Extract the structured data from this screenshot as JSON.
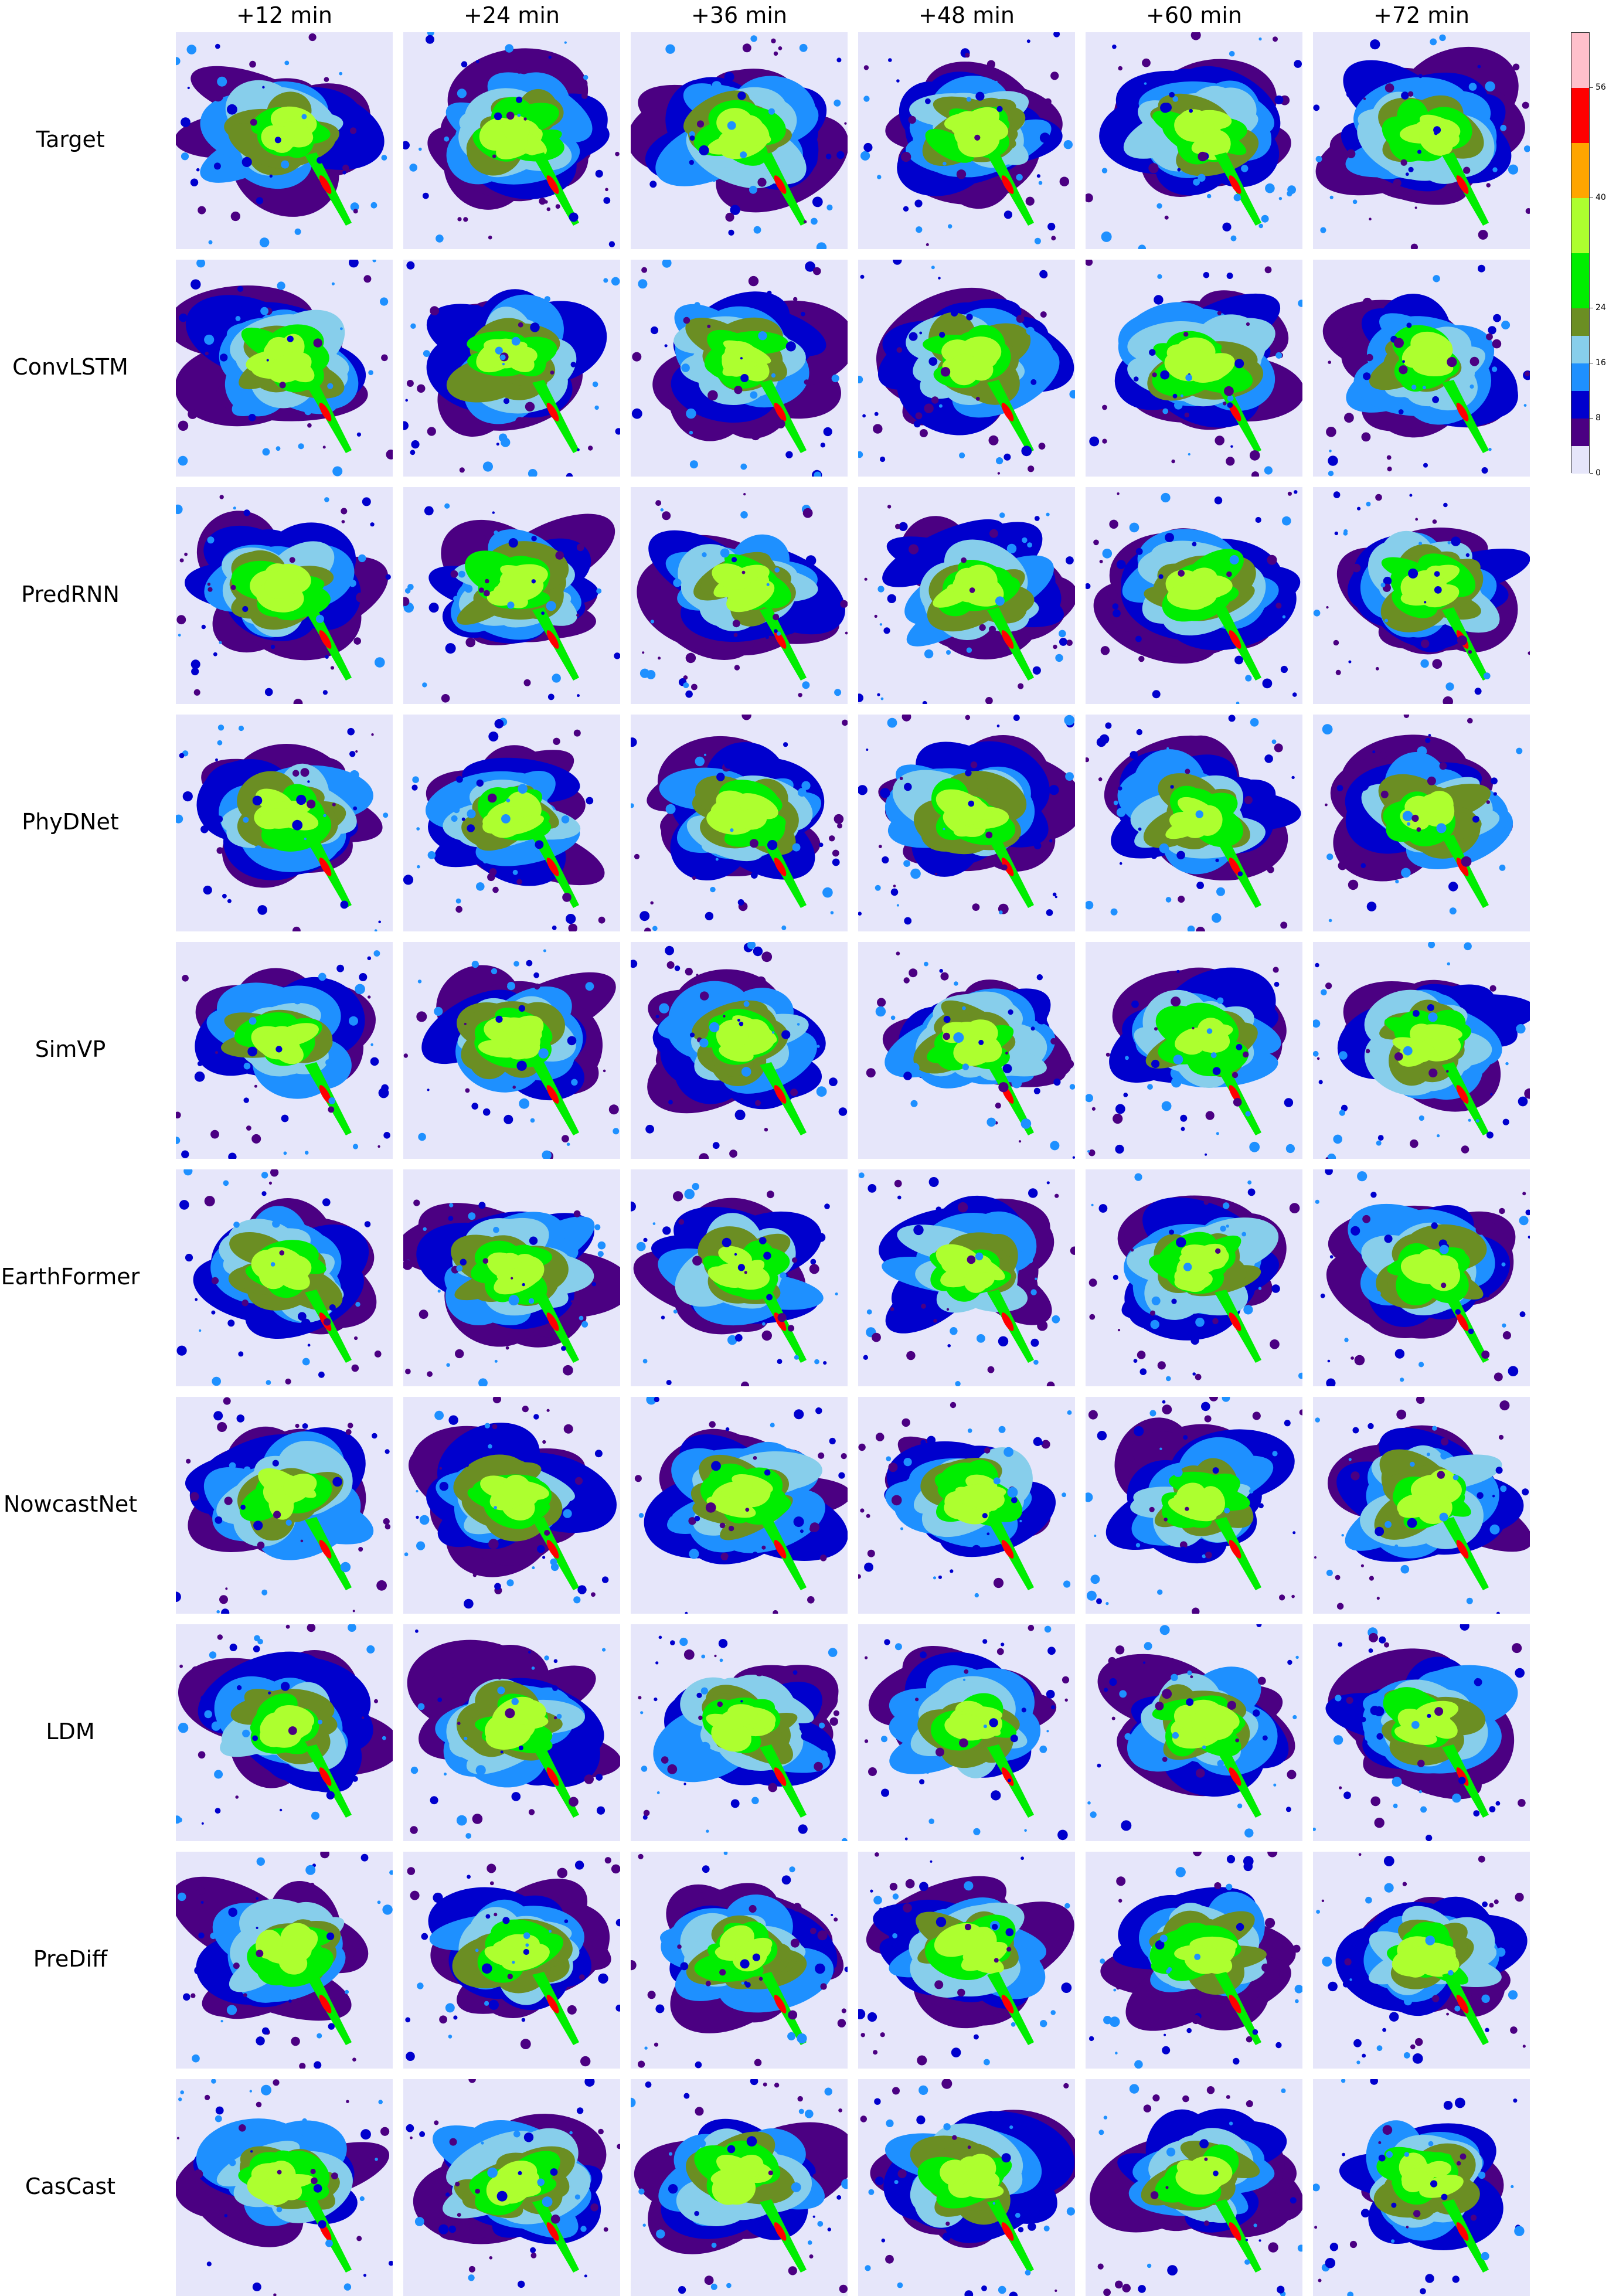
{
  "columns": [
    "+12 min",
    "+24 min",
    "+36 min",
    "+48 min",
    "+60 min",
    "+72 min"
  ],
  "rows": [
    "Target",
    "ConvLSTM",
    "PredRNN",
    "PhyDNet",
    "SimVP",
    "EarthFormer",
    "NowcastNet",
    "LDM",
    "PreDiff",
    "CasCast"
  ],
  "colorbar": {
    "ticks": [
      "0",
      "8",
      "16",
      "24",
      "40",
      "56"
    ],
    "levels": [
      0,
      4,
      8,
      12,
      16,
      20,
      24,
      32,
      40,
      48,
      56,
      64
    ],
    "colors": [
      "#e6e6fa",
      "#4b0082",
      "#0000cd",
      "#1e90ff",
      "#87ceeb",
      "#6b8e23",
      "#00ee00",
      "#adff2f",
      "#ffa500",
      "#ff0000",
      "#ffc0cb"
    ]
  },
  "chart_data": {
    "type": "heatmap",
    "columns": [
      "+12 min",
      "+24 min",
      "+36 min",
      "+48 min",
      "+60 min",
      "+72 min"
    ],
    "rows": [
      "Target",
      "ConvLSTM",
      "PredRNN",
      "PhyDNet",
      "SimVP",
      "EarthFormer",
      "NowcastNet",
      "LDM",
      "PreDiff",
      "CasCast"
    ],
    "colorbar_range": [
      0,
      64
    ],
    "colorbar_ticks": [
      0,
      8,
      16,
      24,
      40,
      56
    ]
  }
}
